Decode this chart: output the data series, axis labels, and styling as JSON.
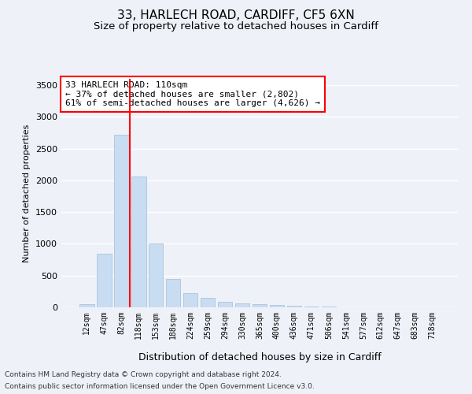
{
  "title1": "33, HARLECH ROAD, CARDIFF, CF5 6XN",
  "title2": "Size of property relative to detached houses in Cardiff",
  "xlabel": "Distribution of detached houses by size in Cardiff",
  "ylabel": "Number of detached properties",
  "categories": [
    "12sqm",
    "47sqm",
    "82sqm",
    "118sqm",
    "153sqm",
    "188sqm",
    "224sqm",
    "259sqm",
    "294sqm",
    "330sqm",
    "365sqm",
    "400sqm",
    "436sqm",
    "471sqm",
    "506sqm",
    "541sqm",
    "577sqm",
    "612sqm",
    "647sqm",
    "683sqm",
    "718sqm"
  ],
  "values": [
    55,
    840,
    2720,
    2060,
    1010,
    445,
    220,
    155,
    85,
    60,
    45,
    35,
    20,
    12,
    8,
    5,
    4,
    3,
    2,
    2,
    2
  ],
  "bar_color": "#c9ddf2",
  "bar_edge_color": "#a0bcd8",
  "vline_color": "red",
  "vline_index": 3,
  "annotation_text": "33 HARLECH ROAD: 110sqm\n← 37% of detached houses are smaller (2,802)\n61% of semi-detached houses are larger (4,626) →",
  "annotation_box_color": "white",
  "annotation_box_edge_color": "red",
  "ylim": [
    0,
    3600
  ],
  "yticks": [
    0,
    500,
    1000,
    1500,
    2000,
    2500,
    3000,
    3500
  ],
  "footer1": "Contains HM Land Registry data © Crown copyright and database right 2024.",
  "footer2": "Contains public sector information licensed under the Open Government Licence v3.0.",
  "bg_color": "#eef2f8",
  "plot_bg_color": "#eef2f8",
  "grid_color": "white",
  "title1_fontsize": 11,
  "title2_fontsize": 9.5,
  "annotation_fontsize": 8,
  "footer_fontsize": 6.5
}
